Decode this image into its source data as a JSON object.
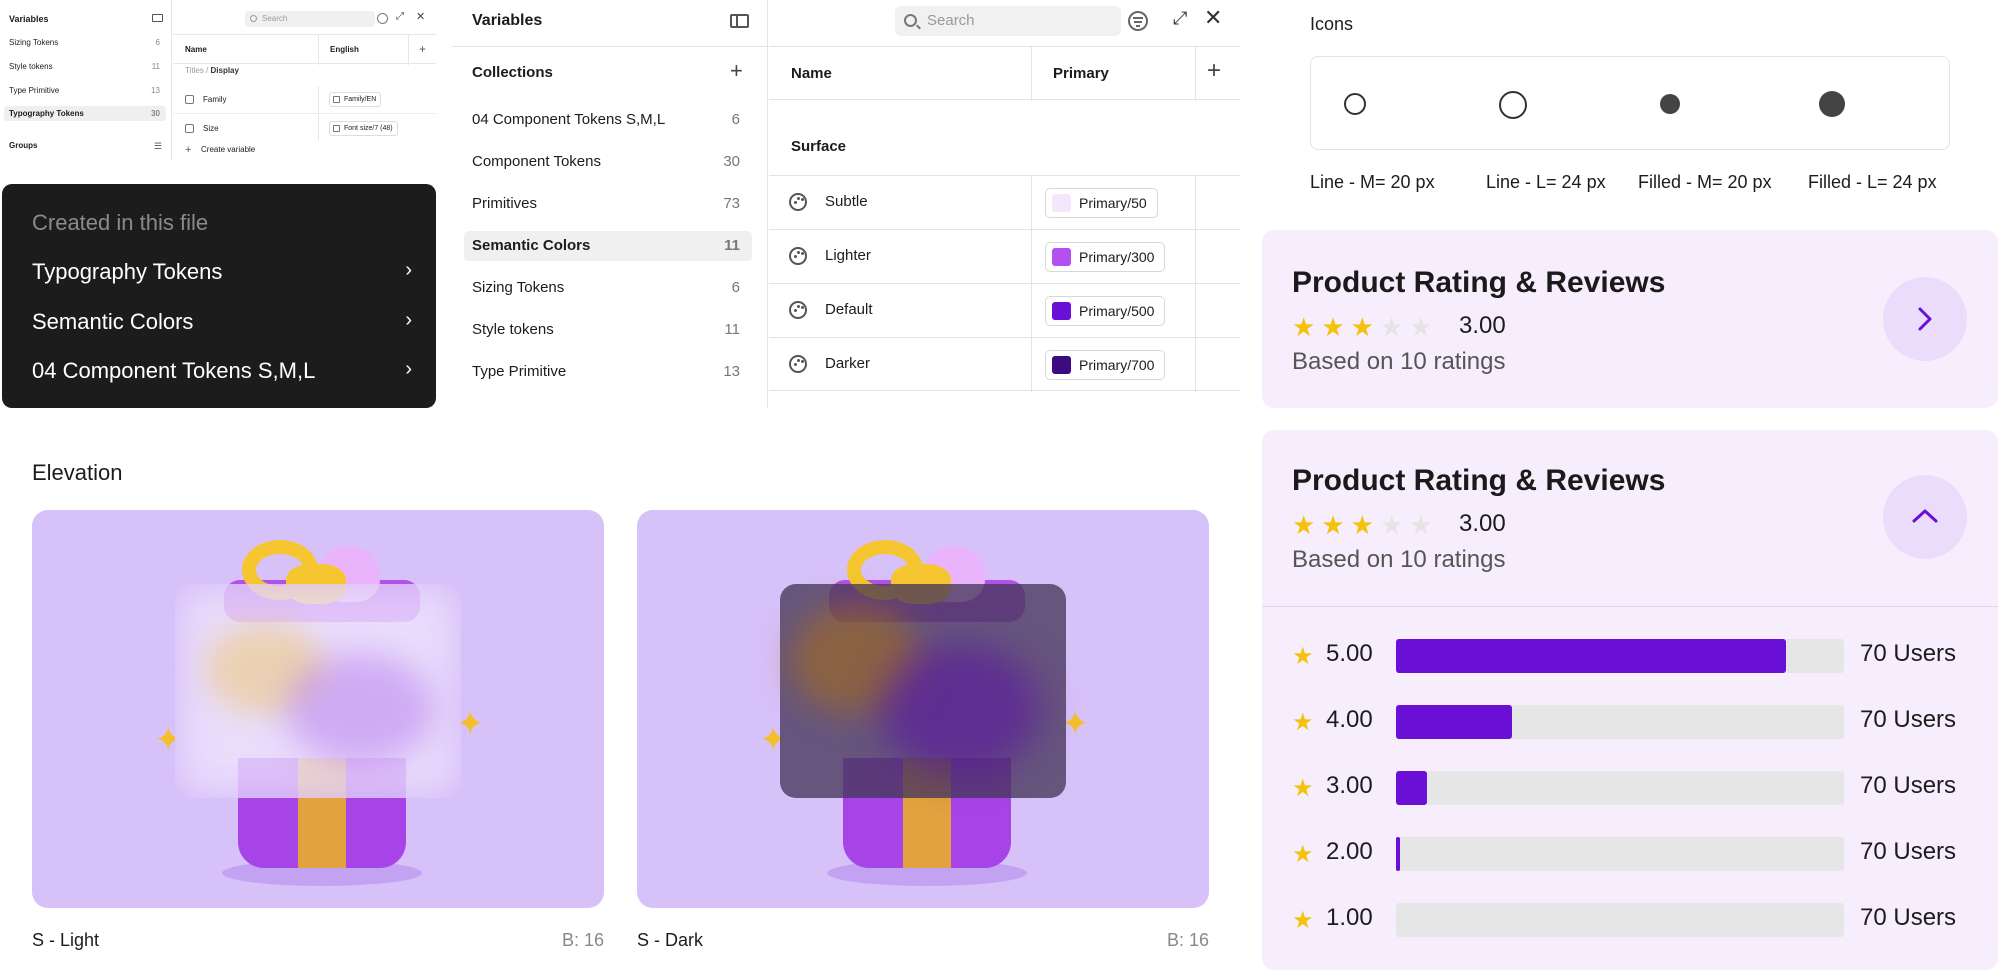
{
  "mini_panel": {
    "title": "Variables",
    "collections": [
      {
        "name": "Sizing Tokens",
        "count": "6"
      },
      {
        "name": "Style tokens",
        "count": "11"
      },
      {
        "name": "Type Primitive",
        "count": "13"
      },
      {
        "name": "Typography Tokens",
        "count": "30"
      }
    ],
    "groups_label": "Groups",
    "search_placeholder": "Search",
    "col_name": "Name",
    "col_lang": "English",
    "breadcrumb_parent": "Titles /",
    "breadcrumb_current": "Display",
    "rows": [
      {
        "name": "Family",
        "value": "Family/EN"
      },
      {
        "name": "Size",
        "value": "Font size/7 (48)"
      }
    ],
    "create_label": "Create variable"
  },
  "menu": {
    "header": "Created in this file",
    "items": [
      "Typography Tokens",
      "Semantic Colors",
      "04 Component Tokens S,M,L"
    ]
  },
  "variables": {
    "title": "Variables",
    "collections_label": "Collections",
    "collections": [
      {
        "name": "04 Component Tokens S,M,L",
        "count": "6"
      },
      {
        "name": "Component Tokens",
        "count": "30"
      },
      {
        "name": "Primitives",
        "count": "73"
      },
      {
        "name": "Semantic Colors",
        "count": "11"
      },
      {
        "name": "Sizing Tokens",
        "count": "6"
      },
      {
        "name": "Style tokens",
        "count": "11"
      },
      {
        "name": "Type Primitive",
        "count": "13"
      }
    ],
    "search_placeholder": "Search",
    "col_name": "Name",
    "col_mode": "Primary",
    "group": "Surface",
    "rows": [
      {
        "name": "Subtle",
        "value": "Primary/50",
        "color": "#f3e6fd"
      },
      {
        "name": "Lighter",
        "value": "Primary/300",
        "color": "#b44ff0"
      },
      {
        "name": "Default",
        "value": "Primary/500",
        "color": "#6a0fd6"
      },
      {
        "name": "Darker",
        "value": "Primary/700",
        "color": "#3d0a82"
      }
    ]
  },
  "icons_section": {
    "title": "Icons",
    "captions": [
      "Line - M= 20 px",
      "Line - L= 24 px",
      "Filled - M= 20 px",
      "Filled - L= 24 px"
    ]
  },
  "rating_card_collapsed": {
    "title": "Product Rating & Reviews",
    "rating": "3.00",
    "stars_filled": 3,
    "stars_total": 5,
    "based_on": "Based on 10 ratings"
  },
  "rating_card_expanded": {
    "title": "Product Rating & Reviews",
    "rating": "3.00",
    "stars_filled": 3,
    "stars_total": 5,
    "based_on": "Based on 10 ratings",
    "distribution": [
      {
        "score": "5.00",
        "fill": 0.87,
        "users": "70 Users"
      },
      {
        "score": "4.00",
        "fill": 0.26,
        "users": "70 Users"
      },
      {
        "score": "3.00",
        "fill": 0.07,
        "users": "70 Users"
      },
      {
        "score": "2.00",
        "fill": 0.01,
        "users": "70 Users"
      },
      {
        "score": "1.00",
        "fill": 0.0,
        "users": "70 Users"
      }
    ]
  },
  "elevation": {
    "title": "Elevation",
    "cards": [
      {
        "label": "S - Light",
        "blur": "B: 16"
      },
      {
        "label": "S - Dark",
        "blur": "B: 16"
      }
    ]
  },
  "colors": {
    "accent": "#6a0fd6",
    "star": "#f4c20d",
    "card_bg": "#f6eefd"
  }
}
